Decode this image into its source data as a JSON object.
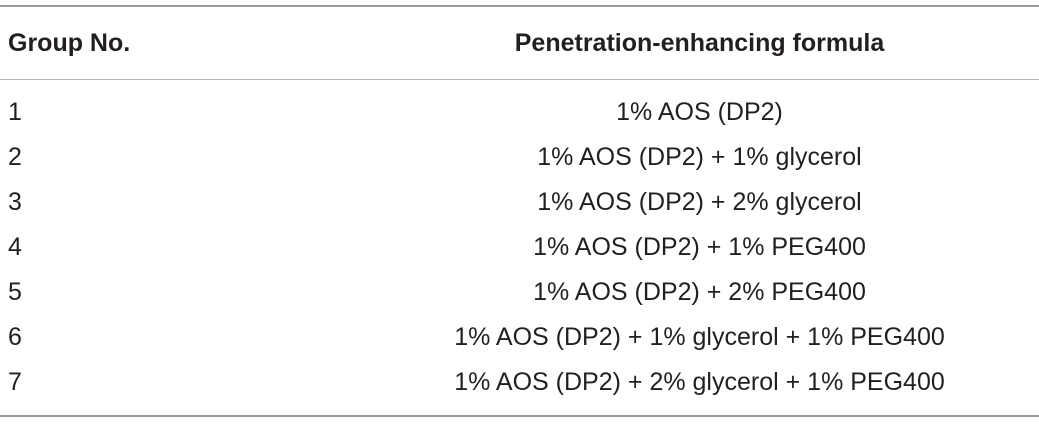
{
  "table": {
    "headers": {
      "group": "Group No.",
      "formula": "Penetration-enhancing formula"
    },
    "rows": [
      {
        "group": "1",
        "formula": "1% AOS (DP2)"
      },
      {
        "group": "2",
        "formula": "1% AOS (DP2) + 1% glycerol"
      },
      {
        "group": "3",
        "formula": "1% AOS (DP2) + 2% glycerol"
      },
      {
        "group": "4",
        "formula": "1% AOS (DP2) + 1% PEG400"
      },
      {
        "group": "5",
        "formula": "1% AOS (DP2) + 2% PEG400"
      },
      {
        "group": "6",
        "formula": "1% AOS (DP2) + 1% glycerol + 1% PEG400"
      },
      {
        "group": "7",
        "formula": "1% AOS (DP2) + 2% glycerol + 1% PEG400"
      }
    ]
  }
}
